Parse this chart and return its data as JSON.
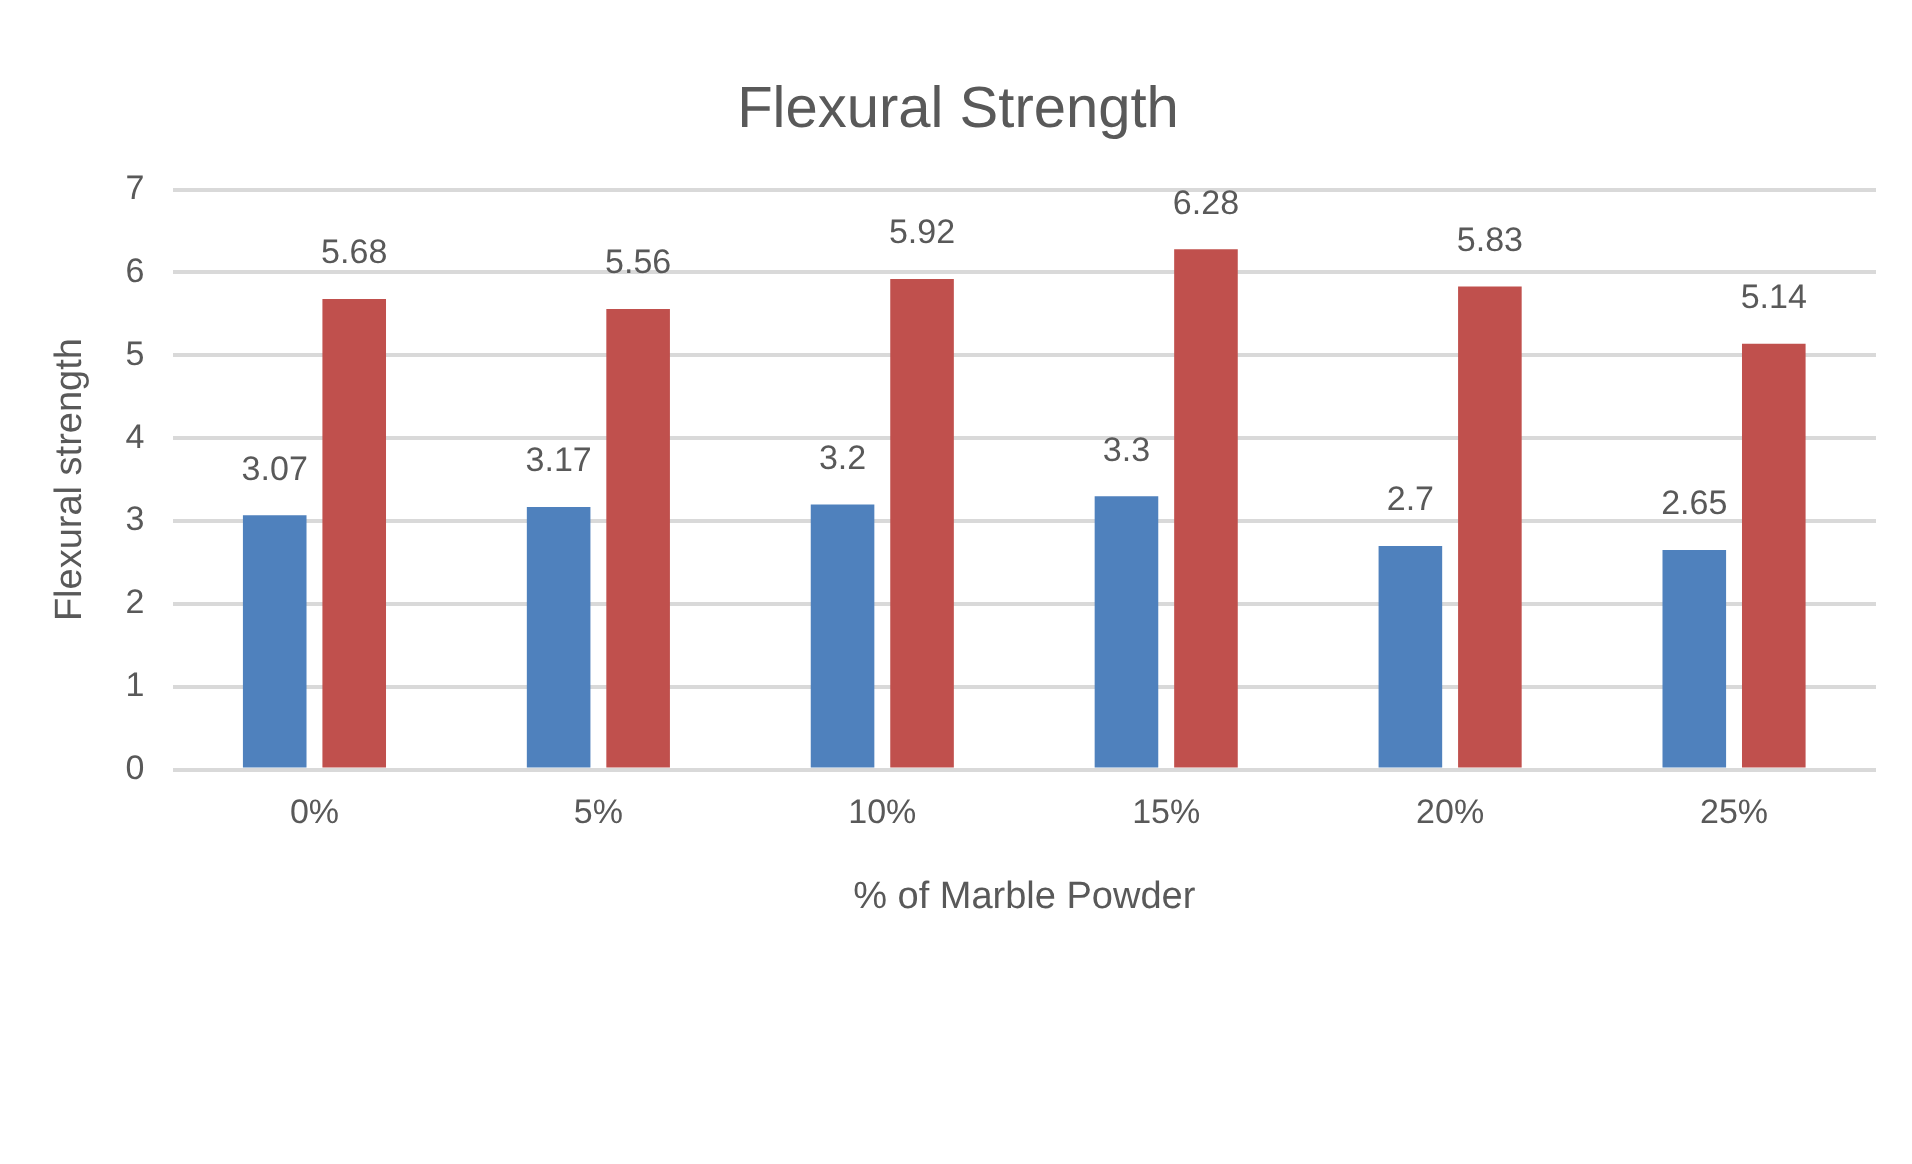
{
  "chart_data": {
    "type": "bar",
    "title": "Flexural Strength",
    "xlabel": "% of Marble Powder",
    "ylabel": "Flexural strength",
    "categories": [
      "0%",
      "5%",
      "10%",
      "15%",
      "20%",
      "25%"
    ],
    "series": [
      {
        "color": "#4f81bd",
        "values": [
          3.07,
          3.17,
          3.2,
          3.3,
          2.7,
          2.65
        ]
      },
      {
        "color": "#c0504d",
        "values": [
          5.68,
          5.56,
          5.92,
          6.28,
          5.83,
          5.14
        ]
      }
    ],
    "ylim": [
      0,
      7
    ],
    "yticks": [
      0,
      1,
      2,
      3,
      4,
      5,
      6,
      7
    ],
    "grid": "y",
    "data_labels": true,
    "legend": false
  }
}
